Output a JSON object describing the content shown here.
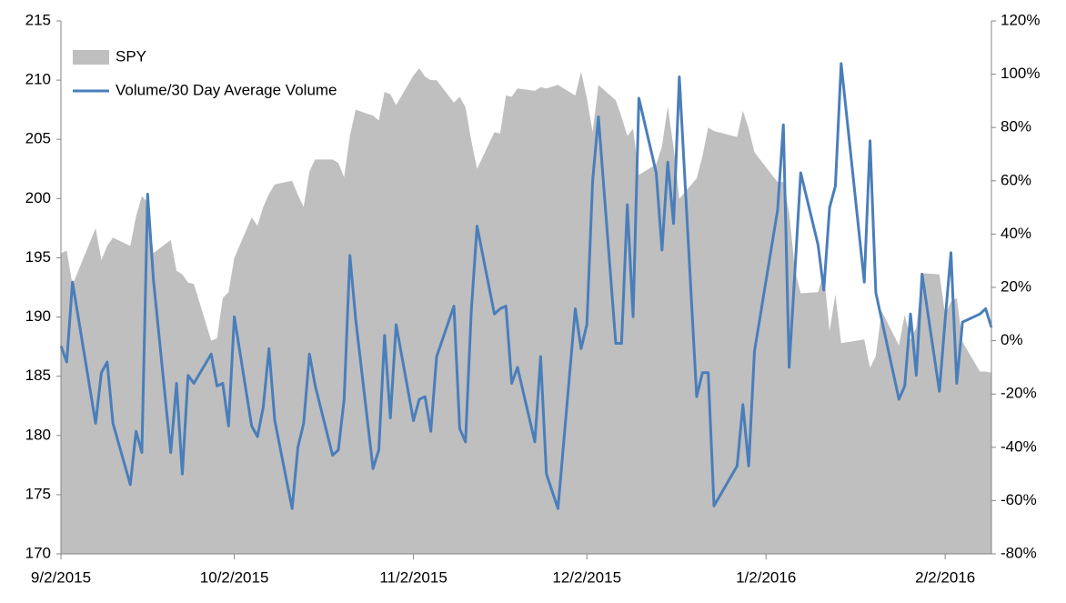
{
  "chart_data": {
    "type": "combo",
    "x": [
      "9/2/2015",
      "9/3/2015",
      "9/4/2015",
      "9/8/2015",
      "9/9/2015",
      "9/10/2015",
      "9/11/2015",
      "9/14/2015",
      "9/15/2015",
      "9/16/2015",
      "9/17/2015",
      "9/18/2015",
      "9/21/2015",
      "9/22/2015",
      "9/23/2015",
      "9/24/2015",
      "9/25/2015",
      "9/28/2015",
      "9/29/2015",
      "9/30/2015",
      "10/1/2015",
      "10/2/2015",
      "10/5/2015",
      "10/6/2015",
      "10/7/2015",
      "10/8/2015",
      "10/9/2015",
      "10/12/2015",
      "10/13/2015",
      "10/14/2015",
      "10/15/2015",
      "10/16/2015",
      "10/19/2015",
      "10/20/2015",
      "10/21/2015",
      "10/22/2015",
      "10/23/2015",
      "10/26/2015",
      "10/27/2015",
      "10/28/2015",
      "10/29/2015",
      "10/30/2015",
      "11/2/2015",
      "11/3/2015",
      "11/4/2015",
      "11/5/2015",
      "11/6/2015",
      "11/9/2015",
      "11/10/2015",
      "11/11/2015",
      "11/12/2015",
      "11/13/2015",
      "11/16/2015",
      "11/17/2015",
      "11/18/2015",
      "11/19/2015",
      "11/20/2015",
      "11/23/2015",
      "11/24/2015",
      "11/25/2015",
      "11/27/2015",
      "11/30/2015",
      "12/1/2015",
      "12/2/2015",
      "12/3/2015",
      "12/4/2015",
      "12/7/2015",
      "12/8/2015",
      "12/9/2015",
      "12/10/2015",
      "12/11/2015",
      "12/14/2015",
      "12/15/2015",
      "12/16/2015",
      "12/17/2015",
      "12/18/2015",
      "12/21/2015",
      "12/22/2015",
      "12/23/2015",
      "12/24/2015",
      "12/28/2015",
      "12/29/2015",
      "12/30/2015",
      "12/31/2015",
      "1/4/2016",
      "1/5/2016",
      "1/6/2016",
      "1/7/2016",
      "1/8/2016",
      "1/11/2016",
      "1/12/2016",
      "1/13/2016",
      "1/14/2016",
      "1/15/2016",
      "1/19/2016",
      "1/20/2016",
      "1/21/2016",
      "1/22/2016",
      "1/25/2016",
      "1/26/2016",
      "1/27/2016",
      "1/28/2016",
      "1/29/2016",
      "2/1/2016",
      "2/2/2016",
      "2/3/2016",
      "2/4/2016",
      "2/5/2016",
      "2/8/2016",
      "2/9/2016",
      "2/10/2016"
    ],
    "series": [
      {
        "name": "SPY",
        "type": "area",
        "axis": "y",
        "color": "#bfbfbf",
        "values": [
          195.4,
          195.6,
          192.7,
          197.5,
          194.8,
          196.0,
          196.7,
          196.0,
          198.5,
          200.2,
          199.7,
          195.4,
          196.5,
          193.9,
          193.6,
          192.9,
          192.8,
          188.0,
          188.2,
          191.6,
          192.1,
          195.0,
          198.4,
          197.7,
          199.3,
          200.4,
          201.2,
          201.5,
          200.3,
          199.3,
          202.3,
          203.3,
          203.3,
          203.0,
          201.8,
          205.3,
          207.5,
          207.0,
          206.6,
          209.0,
          208.8,
          207.9,
          210.4,
          211.0,
          210.3,
          210.0,
          210.0,
          208.1,
          208.6,
          207.7,
          204.9,
          202.5,
          205.6,
          205.5,
          208.7,
          208.6,
          209.3,
          209.1,
          209.4,
          209.3,
          209.6,
          208.7,
          210.7,
          208.5,
          205.6,
          209.6,
          208.3,
          206.9,
          205.3,
          205.9,
          202.0,
          202.9,
          204.4,
          207.8,
          204.3,
          200.0,
          201.7,
          203.6,
          206.0,
          205.7,
          205.2,
          207.4,
          205.9,
          203.9,
          201.4,
          201.4,
          198.8,
          194.0,
          192.0,
          192.1,
          193.7,
          188.8,
          191.9,
          187.8,
          188.1,
          185.7,
          186.7,
          190.5,
          187.6,
          190.2,
          188.1,
          189.1,
          193.7,
          193.6,
          190.2,
          191.3,
          191.6,
          187.9,
          185.4,
          185.4,
          185.3
        ]
      },
      {
        "name": "Volume/30 Day Average Volume",
        "type": "line",
        "axis": "y2",
        "color": "#4a7ebb",
        "values": [
          -2,
          -8,
          22,
          -31,
          -12,
          -8,
          -31,
          -54,
          -34,
          -42,
          55,
          23,
          -42,
          -16,
          -50,
          -13,
          -16,
          -5,
          -17,
          -16,
          -32,
          9,
          -32,
          -36,
          -25,
          -3,
          -30,
          -63,
          -40,
          -31,
          -5,
          -17,
          -43,
          -41,
          -22,
          32,
          8,
          -48,
          -41,
          2,
          -29,
          6,
          -30,
          -22,
          -21,
          -34,
          -6,
          13,
          -33,
          -38,
          11,
          43,
          10,
          12,
          13,
          -16,
          -10,
          -38,
          -6,
          -50,
          -63,
          12,
          -3,
          6,
          60,
          84,
          -1,
          -1,
          51,
          9,
          91,
          63,
          34,
          67,
          44,
          99,
          -21,
          -12,
          -12,
          -62,
          -47,
          -24,
          -47,
          -4,
          49,
          81,
          -10,
          26,
          63,
          36,
          19,
          50,
          58,
          104,
          22,
          75,
          18,
          8,
          -22,
          -17,
          10,
          -13,
          25,
          -19,
          8,
          33,
          -16,
          7,
          10,
          12,
          5
        ]
      }
    ],
    "xlim": [
      "9/2/2015",
      "2/10/2016"
    ],
    "xticks": [
      "9/2/2015",
      "10/2/2015",
      "11/2/2015",
      "12/2/2015",
      "1/2/2016",
      "2/2/2016"
    ],
    "ylim": [
      170,
      215
    ],
    "yticks": [
      170,
      175,
      180,
      185,
      190,
      195,
      200,
      205,
      210,
      215
    ],
    "y2lim": [
      -80,
      120
    ],
    "y2ticks": [
      {
        "value": -80,
        "label": "-80%"
      },
      {
        "value": -60,
        "label": "-60%"
      },
      {
        "value": -40,
        "label": "-40%"
      },
      {
        "value": -20,
        "label": "-20%"
      },
      {
        "value": 0,
        "label": "0%"
      },
      {
        "value": 20,
        "label": "20%"
      },
      {
        "value": 40,
        "label": "40%"
      },
      {
        "value": 60,
        "label": "60%"
      },
      {
        "value": 80,
        "label": "80%"
      },
      {
        "value": 100,
        "label": "100%"
      },
      {
        "value": 120,
        "label": "120%"
      }
    ],
    "legend": "upper-left",
    "grid": false
  }
}
